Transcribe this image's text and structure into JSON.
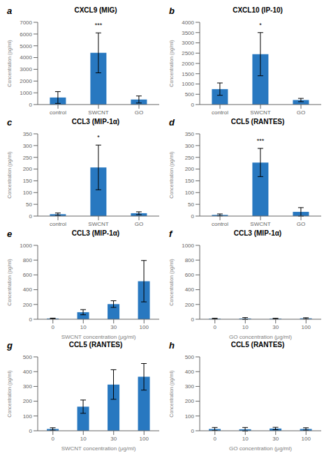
{
  "chart_data": [
    {
      "type": "bar",
      "panel_label": "a",
      "title": "CXCL9 (MIG)",
      "categories": [
        "control",
        "SWCNT",
        "GO"
      ],
      "values": [
        600,
        4400,
        430
      ],
      "errors": [
        500,
        1700,
        300
      ],
      "color": "#2878C0",
      "ylim": [
        0,
        7000
      ],
      "yticks": [
        0,
        1000,
        2000,
        3000,
        4000,
        5000,
        6000,
        7000
      ],
      "y_label": "Concentration (pg/ml)",
      "annotations": [
        {
          "x": "SWCNT",
          "text": "***"
        }
      ]
    },
    {
      "type": "bar",
      "panel_label": "b",
      "title": "CXCL10 (IP-10)",
      "categories": [
        "control",
        "SWCNT",
        "GO"
      ],
      "values": [
        750,
        2450,
        220
      ],
      "errors": [
        300,
        1050,
        80
      ],
      "color": "#2878C0",
      "ylim": [
        0,
        4000
      ],
      "yticks": [
        0,
        500,
        1000,
        1500,
        2000,
        2500,
        3000,
        3500,
        4000
      ],
      "y_label": "Concentration (pg/ml)",
      "annotations": [
        {
          "x": "SWCNT",
          "text": "*"
        }
      ]
    },
    {
      "type": "bar",
      "panel_label": "c",
      "title": "CCL3 (MIP-1α)",
      "categories": [
        "control",
        "SWCNT",
        "GO"
      ],
      "values": [
        8,
        207,
        12
      ],
      "errors": [
        5,
        95,
        6
      ],
      "color": "#2878C0",
      "ylim": [
        0,
        350
      ],
      "yticks": [
        0,
        50,
        100,
        150,
        200,
        250,
        300,
        350
      ],
      "y_label": "Concentration (pg/ml)",
      "annotations": [
        {
          "x": "SWCNT",
          "text": "*"
        }
      ]
    },
    {
      "type": "bar",
      "panel_label": "d",
      "title": "CCL5 (RANTES)",
      "categories": [
        "control",
        "SWCNT",
        "GO"
      ],
      "values": [
        5,
        228,
        18
      ],
      "errors": [
        4,
        60,
        18
      ],
      "color": "#2878C0",
      "ylim": [
        0,
        350
      ],
      "yticks": [
        0,
        50,
        100,
        150,
        200,
        250,
        300,
        350
      ],
      "y_label": "Concentration (pg/ml)",
      "annotations": [
        {
          "x": "SWCNT",
          "text": "***"
        }
      ]
    },
    {
      "type": "bar",
      "panel_label": "e",
      "title": "CCL3 (MIP-1α)",
      "categories": [
        "0",
        "10",
        "30",
        "100"
      ],
      "values": [
        10,
        95,
        205,
        515
      ],
      "errors": [
        5,
        35,
        45,
        280
      ],
      "color": "#2878C0",
      "ylim": [
        0,
        1000
      ],
      "yticks": [
        0,
        200,
        400,
        600,
        800,
        1000
      ],
      "y_label": "Concentration (pg/ml)",
      "x_label": "SWCNT concentration (μg/ml)"
    },
    {
      "type": "bar",
      "panel_label": "f",
      "title": "CCL3 (MIP-1α)",
      "categories": [
        "0",
        "10",
        "30",
        "100"
      ],
      "values": [
        8,
        10,
        8,
        12
      ],
      "errors": [
        5,
        12,
        5,
        8
      ],
      "color": "#2878C0",
      "ylim": [
        0,
        1000
      ],
      "yticks": [
        0,
        200,
        400,
        600,
        800,
        1000
      ],
      "y_label": "Concentration (pg/ml)",
      "x_label": "GO concentration (μg/ml)"
    },
    {
      "type": "bar",
      "panel_label": "g",
      "title": "CCL5 (RANTES)",
      "categories": [
        "0",
        "10",
        "30",
        "100"
      ],
      "values": [
        12,
        163,
        313,
        365
      ],
      "errors": [
        8,
        45,
        100,
        90
      ],
      "color": "#2878C0",
      "ylim": [
        0,
        500
      ],
      "yticks": [
        0,
        100,
        200,
        300,
        400,
        500
      ],
      "y_label": "Concentration (pg/ml)",
      "x_label": "SWCNT concentration (μg/ml)"
    },
    {
      "type": "bar",
      "panel_label": "h",
      "title": "CCL5 (RANTES)",
      "categories": [
        "0",
        "10",
        "30",
        "100"
      ],
      "values": [
        12,
        10,
        15,
        12
      ],
      "errors": [
        10,
        12,
        8,
        8
      ],
      "color": "#2878C0",
      "ylim": [
        0,
        500
      ],
      "yticks": [
        0,
        100,
        200,
        300,
        400,
        500
      ],
      "y_label": "Concentration (pg/ml)",
      "x_label": "GO concentration (μg/ml)"
    }
  ]
}
